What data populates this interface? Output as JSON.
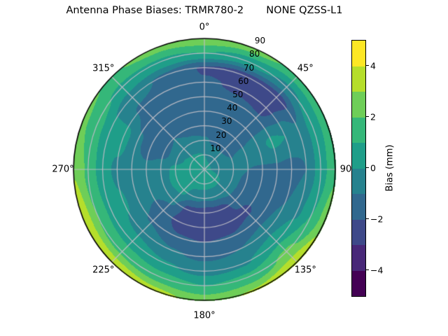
{
  "title": "Antenna Phase Biases: TRMR780-2       NONE QZSS-L1",
  "chart_data": {
    "type": "polar_contour",
    "title": "Antenna Phase Biases: TRMR780-2       NONE QZSS-L1",
    "theta_zero_location": "top",
    "theta_direction": "clockwise",
    "theta_ticks_deg": [
      0,
      45,
      90,
      135,
      180,
      225,
      270,
      315
    ],
    "theta_labels": [
      "0°",
      "45°",
      "90",
      "135°",
      "180°",
      "225°",
      "270°",
      "315°"
    ],
    "r_ticks": [
      10,
      20,
      30,
      40,
      50,
      60,
      70,
      80,
      90
    ],
    "r_labels": [
      "10",
      "20",
      "30",
      "40",
      "50",
      "60",
      "70",
      "80",
      "90"
    ],
    "r_max": 90,
    "r_label_angle_deg": 22.5,
    "grid_on": true,
    "levels_mm": [
      -5,
      -4,
      -3,
      -2,
      -1,
      0,
      1,
      2,
      3,
      4,
      5
    ],
    "band_colors": [
      "#440154",
      "#482878",
      "#3e4989",
      "#31688e",
      "#26828e",
      "#1f9e89",
      "#35b779",
      "#6ece58",
      "#b5de2b",
      "#fde725"
    ],
    "colorbar": {
      "label": "Bias (mm)",
      "range": [
        -5,
        5
      ],
      "ticks": [
        {
          "value": 4,
          "label": "4"
        },
        {
          "value": 2,
          "label": "2"
        },
        {
          "value": 0,
          "label": "0"
        },
        {
          "value": -2,
          "label": "−2"
        },
        {
          "value": -4,
          "label": "−4"
        }
      ]
    },
    "grid": {
      "azimuth_deg": [
        0,
        22.5,
        45,
        67.5,
        90,
        112.5,
        135,
        157.5,
        180,
        202.5,
        225,
        247.5,
        270,
        292.5,
        315,
        337.5
      ],
      "zenith_deg": [
        0,
        10,
        20,
        30,
        40,
        50,
        60,
        70,
        80,
        90
      ],
      "bias_mm": [
        [
          0.3,
          0.0,
          -0.9,
          -1.4,
          -1.6,
          -1.7,
          -1.9,
          -2.1,
          1.0,
          2.8
        ],
        [
          0.3,
          -0.2,
          -1.2,
          -1.6,
          -1.7,
          -1.8,
          -2.1,
          -2.4,
          0.5,
          2.5
        ],
        [
          0.2,
          -0.3,
          -1.3,
          -1.5,
          -1.6,
          -1.9,
          -2.3,
          -2.5,
          -0.2,
          1.7
        ],
        [
          0.2,
          -0.3,
          -1.0,
          -0.8,
          -0.3,
          0.2,
          0.0,
          -0.8,
          0.4,
          1.6
        ],
        [
          0.2,
          -0.3,
          -0.8,
          -1.0,
          -1.1,
          -1.2,
          -1.4,
          -1.0,
          0.6,
          1.8
        ],
        [
          0.3,
          0.0,
          -0.7,
          -1.3,
          -1.2,
          -1.3,
          -1.0,
          -0.2,
          1.0,
          2.6
        ],
        [
          0.3,
          0.2,
          -0.6,
          -1.6,
          -2.2,
          -1.4,
          -0.4,
          0.8,
          2.2,
          3.9
        ],
        [
          0.4,
          0.3,
          -0.8,
          -2.5,
          -2.6,
          -1.9,
          -1.0,
          -0.1,
          1.3,
          3.1
        ],
        [
          0.5,
          0.4,
          -0.9,
          -2.6,
          -2.7,
          -2.0,
          -1.2,
          -0.3,
          1.0,
          2.6
        ],
        [
          0.6,
          0.5,
          -0.7,
          -2.3,
          -2.5,
          -1.9,
          -0.9,
          0.1,
          1.5,
          3.3
        ],
        [
          0.6,
          0.6,
          0.3,
          -0.8,
          -1.5,
          -1.1,
          -0.3,
          0.5,
          1.8,
          3.7
        ],
        [
          0.6,
          0.6,
          0.4,
          -0.4,
          -0.7,
          -0.6,
          0.1,
          0.7,
          2.0,
          3.9
        ],
        [
          0.5,
          0.6,
          0.2,
          -0.3,
          -0.6,
          -0.4,
          -0.2,
          0.3,
          1.8,
          2.9
        ],
        [
          0.5,
          0.4,
          -0.3,
          -1.3,
          -1.7,
          -0.8,
          0.4,
          0.3,
          1.4,
          2.2
        ],
        [
          0.4,
          0.2,
          -0.6,
          -1.0,
          -1.3,
          -1.5,
          -1.2,
          -0.6,
          0.8,
          1.9
        ],
        [
          0.3,
          0.1,
          -0.8,
          -1.2,
          -1.4,
          -1.4,
          -1.4,
          -1.2,
          0.8,
          2.4
        ]
      ]
    }
  }
}
